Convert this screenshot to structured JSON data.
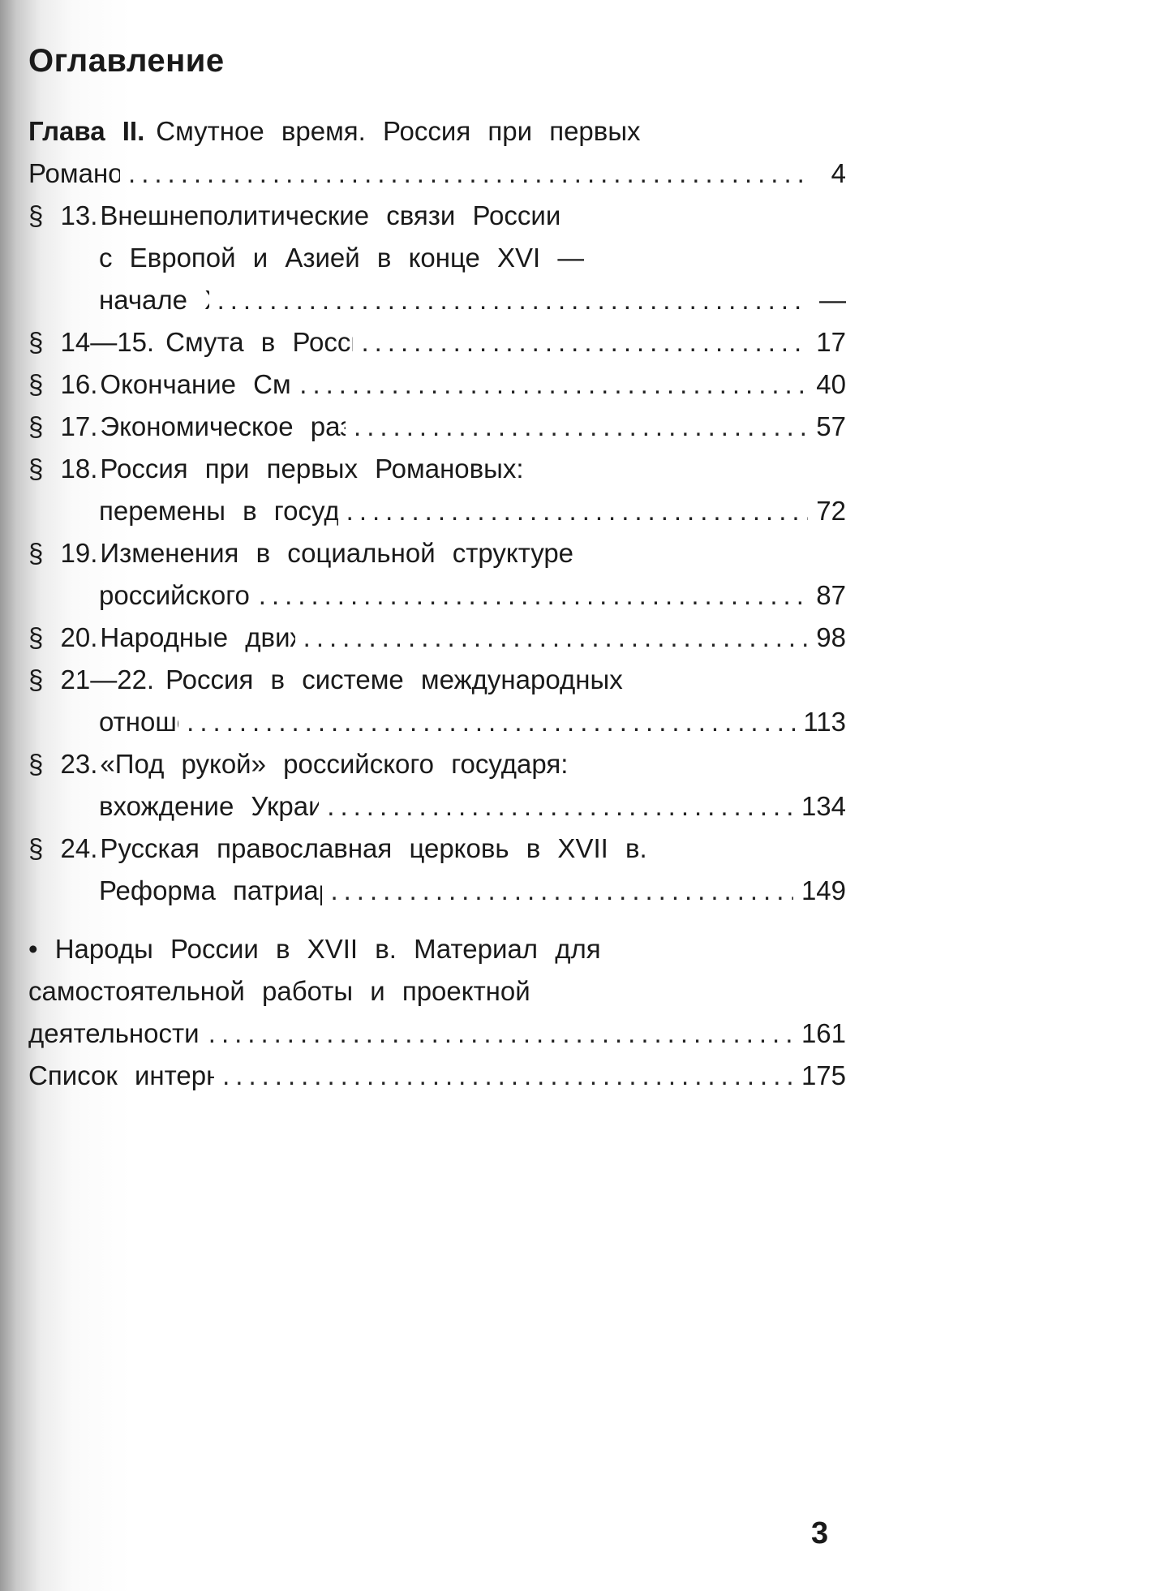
{
  "title": "Оглавление",
  "chapter": {
    "label": "Глава II.",
    "lines": [
      "Смутное время. Россия при первых",
      "Романовых"
    ],
    "page": "4"
  },
  "entries": [
    {
      "num": "§ 13.",
      "lines": [
        "Внешнеполитические связи России",
        "с Европой и Азией в конце XVI —",
        "начале XVII в."
      ],
      "page": "—"
    },
    {
      "num": "§ 14—15.",
      "lines": [
        "Смута в Российском государстве"
      ],
      "page": "17"
    },
    {
      "num": "§ 16.",
      "lines": [
        "Окончание Смутного времени"
      ],
      "page": "40"
    },
    {
      "num": "§ 17.",
      "lines": [
        "Экономическое развитие России в XVII в."
      ],
      "page": "57"
    },
    {
      "num": "§ 18.",
      "lines": [
        "Россия при первых Романовых:",
        "перемены в государственном устройстве"
      ],
      "page": "72"
    },
    {
      "num": "§ 19.",
      "lines": [
        "Изменения в социальной структуре",
        "российского общества"
      ],
      "page": "87"
    },
    {
      "num": "§ 20.",
      "lines": [
        "Народные движения в XVII в."
      ],
      "page": "98"
    },
    {
      "num": "§ 21—22.",
      "lines": [
        "Россия в системе международных",
        "отношений"
      ],
      "page": "113"
    },
    {
      "num": "§ 23.",
      "lines": [
        "«Под рукой» российского государя:",
        "вхождение Украины в состав России"
      ],
      "page": "134"
    },
    {
      "num": "§ 24.",
      "lines": [
        "Русская православная церковь в XVII в.",
        "Реформа патриарха Никона и Раскол"
      ],
      "page": "149"
    }
  ],
  "appendix": [
    {
      "lines": [
        "• Народы России в XVII в. Материал для",
        "самостоятельной работы и проектной",
        "деятельности учащихся"
      ],
      "page": "161"
    },
    {
      "lines": [
        "Список интернет-ресурсов"
      ],
      "page": "175"
    }
  ],
  "folio": "3"
}
